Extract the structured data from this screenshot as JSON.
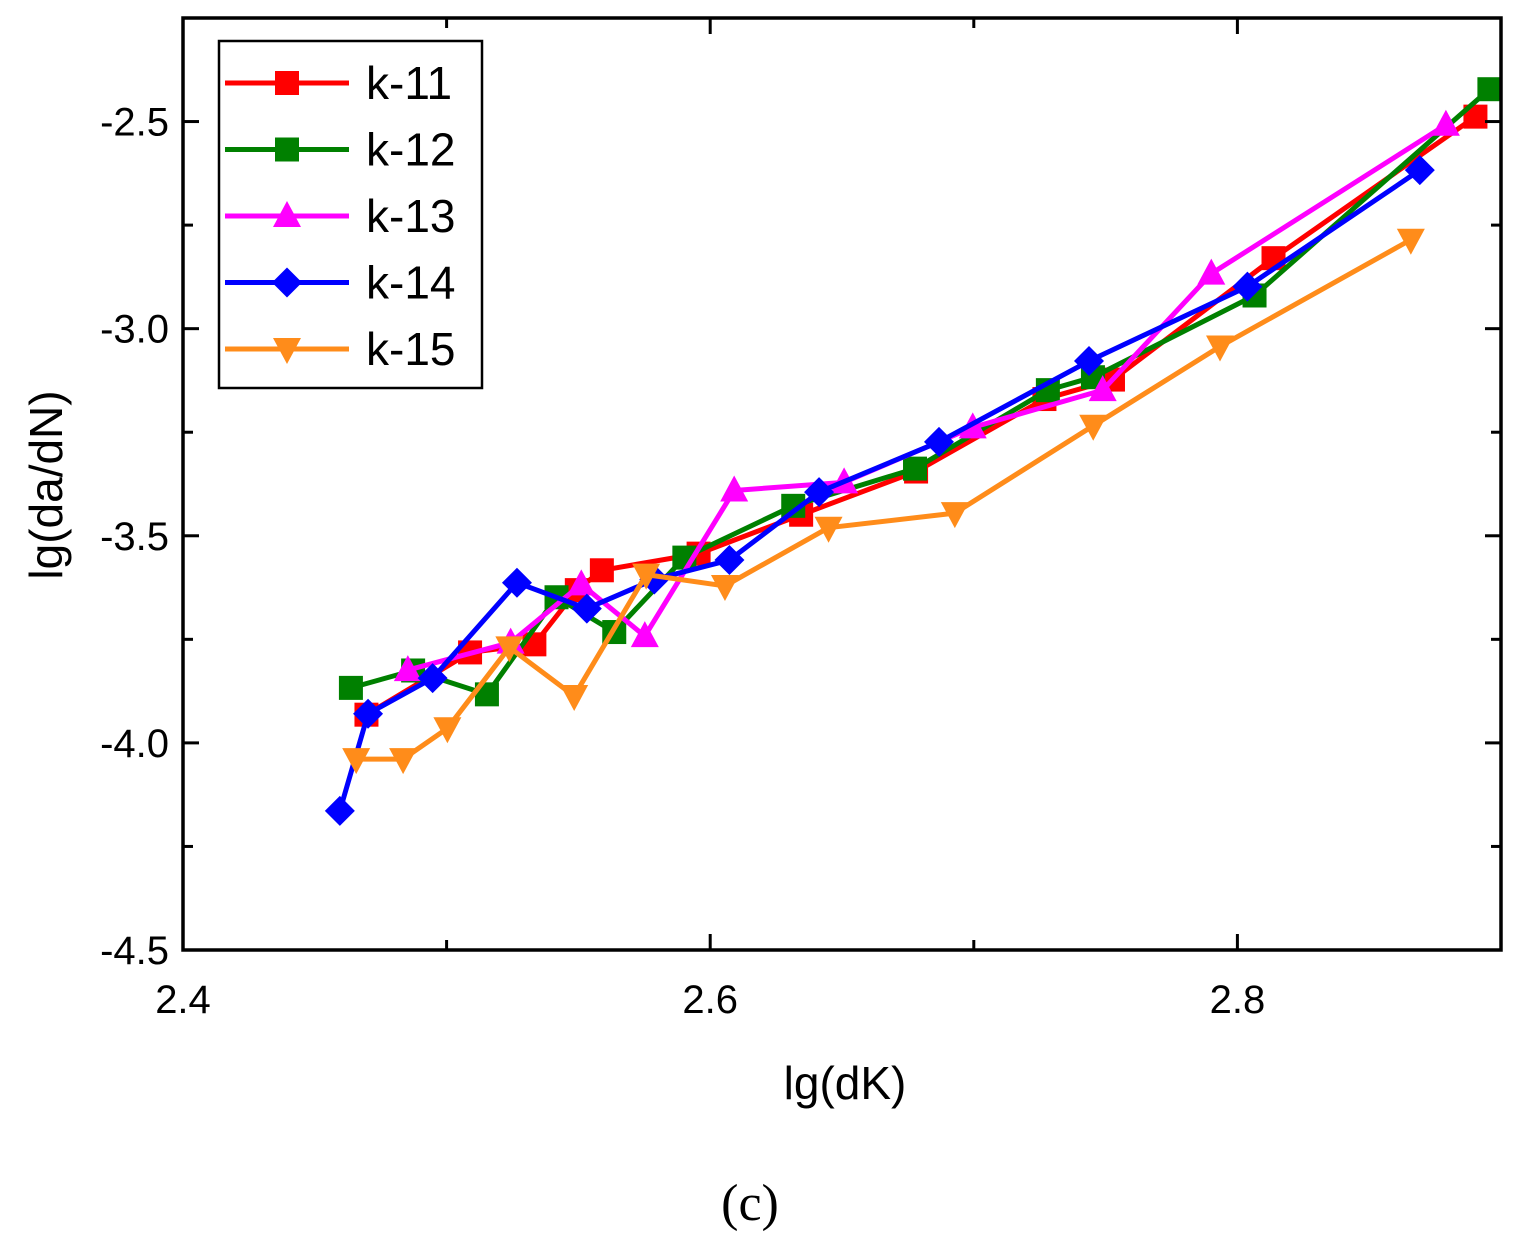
{
  "chart_data": {
    "type": "line",
    "xlabel": "lg(dK)",
    "ylabel": "lg(da/dN)",
    "xlim": [
      2.4,
      2.9
    ],
    "ylim": [
      -4.5,
      -2.25
    ],
    "xticks": [
      2.4,
      2.6,
      2.8
    ],
    "xtick_labels": [
      "2.4",
      "2.6",
      "2.8"
    ],
    "yticks": [
      -4.5,
      -4.0,
      -3.5,
      -3.0,
      -2.5
    ],
    "ytick_labels": [
      "-4.5",
      "-4.0",
      "-3.5",
      "-3.0",
      "-2.5"
    ],
    "caption": "(c)",
    "legend_position": "top-left",
    "series": [
      {
        "name": "k-11",
        "color": "#ff0000",
        "marker": "square",
        "x": [
          2.4696,
          2.5089,
          2.5333,
          2.5494,
          2.5589,
          2.5956,
          2.6345,
          2.6781,
          2.7268,
          2.7528,
          2.8137,
          2.8903
        ],
        "y": [
          -3.9319,
          -3.7816,
          -3.7621,
          -3.6312,
          -3.5833,
          -3.5431,
          -3.4492,
          -3.3449,
          -3.1699,
          -3.1229,
          -2.8298,
          -2.4881
        ]
      },
      {
        "name": "k-12",
        "color": "#008000",
        "marker": "square",
        "x": [
          2.4637,
          2.4873,
          2.5153,
          2.5417,
          2.5636,
          2.5902,
          2.6315,
          2.6777,
          2.7281,
          2.7452,
          2.8065,
          2.8956
        ],
        "y": [
          -3.8672,
          -3.8252,
          -3.8828,
          -3.6484,
          -3.7324,
          -3.5527,
          -3.4277,
          -3.3379,
          -3.1484,
          -3.1172,
          -2.9199,
          -2.4219
        ]
      },
      {
        "name": "k-13",
        "color": "#ff00ff",
        "marker": "triangle-up",
        "x": [
          2.4853,
          2.5243,
          2.5511,
          2.5752,
          2.6091,
          2.6508,
          2.6996,
          2.7489,
          2.7901,
          2.8791
        ],
        "y": [
          -3.8242,
          -3.7578,
          -3.6172,
          -3.7422,
          -3.3906,
          -3.3711,
          -3.2383,
          -3.1484,
          -2.8672,
          -2.5078
        ]
      },
      {
        "name": "k-14",
        "color": "#0000ff",
        "marker": "diamond",
        "x": [
          2.4595,
          2.4702,
          2.4947,
          2.5267,
          2.5532,
          2.5788,
          2.6073,
          2.6413,
          2.6868,
          2.7437,
          2.8038,
          2.8692
        ],
        "y": [
          -4.1641,
          -3.9297,
          -3.8438,
          -3.6133,
          -3.6758,
          -3.6055,
          -3.5586,
          -3.3945,
          -3.2734,
          -3.0781,
          -2.8984,
          -2.6172
        ]
      },
      {
        "name": "k-15",
        "color": "#ff8c1a",
        "marker": "triangle-down",
        "x": [
          2.4657,
          2.4835,
          2.5003,
          2.5238,
          2.5484,
          2.5757,
          2.6056,
          2.6449,
          2.6928,
          2.7453,
          2.7934,
          2.8658
        ],
        "y": [
          -4.0391,
          -4.0391,
          -3.9648,
          -3.7695,
          -3.8867,
          -3.5938,
          -3.6211,
          -3.4805,
          -3.4453,
          -3.2344,
          -3.043,
          -2.7852
        ]
      }
    ]
  }
}
